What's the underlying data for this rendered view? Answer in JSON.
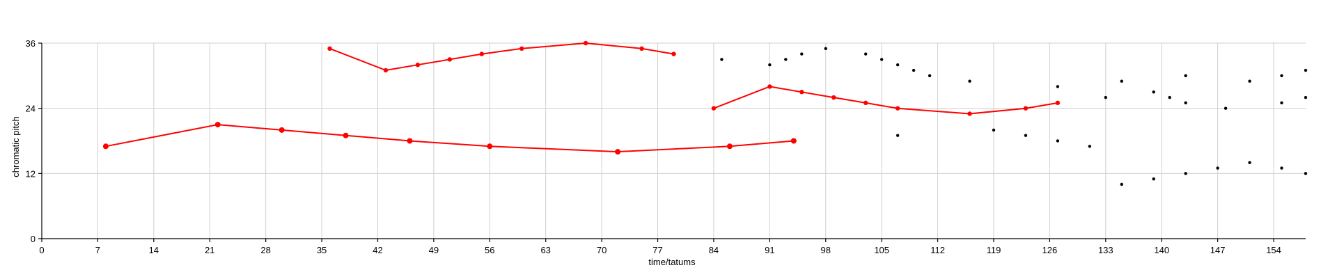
{
  "chart_data": {
    "type": "line",
    "title": "",
    "xlabel": "time/tatums",
    "ylabel": "chromatic pitch",
    "xlim": [
      0,
      158
    ],
    "ylim": [
      0,
      36
    ],
    "xticks": [
      0,
      7,
      14,
      21,
      28,
      35,
      42,
      49,
      56,
      63,
      70,
      77,
      84,
      91,
      98,
      105,
      112,
      119,
      126,
      133,
      140,
      147,
      154
    ],
    "yticks": [
      0,
      12,
      24,
      36
    ],
    "grid": true,
    "line_color": "#ff0000",
    "dot_color": "#000000",
    "series": [
      {
        "values": [
          [
            8,
            17
          ],
          [
            22,
            21
          ],
          [
            30,
            20
          ],
          [
            38,
            19
          ],
          [
            46,
            18
          ],
          [
            56,
            17
          ],
          [
            72,
            16
          ],
          [
            86,
            17
          ],
          [
            94,
            18
          ]
        ]
      },
      {
        "values": [
          [
            36,
            35
          ],
          [
            43,
            31
          ],
          [
            47,
            32
          ],
          [
            51,
            33
          ],
          [
            55,
            34
          ],
          [
            60,
            35
          ],
          [
            68,
            36
          ],
          [
            75,
            35
          ],
          [
            79,
            34
          ]
        ]
      },
      {
        "values": [
          [
            84,
            24
          ],
          [
            91,
            28
          ],
          [
            95,
            27
          ],
          [
            99,
            26
          ],
          [
            103,
            25
          ],
          [
            107,
            24
          ],
          [
            116,
            23
          ],
          [
            123,
            24
          ],
          [
            127,
            25
          ]
        ]
      }
    ],
    "points": [
      [
        85,
        33
      ],
      [
        91,
        32
      ],
      [
        93,
        33
      ],
      [
        95,
        34
      ],
      [
        98,
        35
      ],
      [
        103,
        34
      ],
      [
        105,
        33
      ],
      [
        107,
        32
      ],
      [
        109,
        31
      ],
      [
        111,
        30
      ],
      [
        116,
        29
      ],
      [
        127,
        28
      ],
      [
        133,
        26
      ],
      [
        135,
        29
      ],
      [
        139,
        27
      ],
      [
        141,
        26
      ],
      [
        143,
        30
      ],
      [
        143,
        25
      ],
      [
        148,
        24
      ],
      [
        151,
        29
      ],
      [
        155,
        30
      ],
      [
        155,
        25
      ],
      [
        159,
        31
      ],
      [
        159,
        26
      ],
      [
        107,
        19
      ],
      [
        119,
        20
      ],
      [
        123,
        19
      ],
      [
        127,
        18
      ],
      [
        131,
        17
      ],
      [
        135,
        10
      ],
      [
        139,
        11
      ],
      [
        143,
        12
      ],
      [
        147,
        13
      ],
      [
        151,
        14
      ],
      [
        155,
        13
      ],
      [
        159,
        12
      ]
    ]
  }
}
